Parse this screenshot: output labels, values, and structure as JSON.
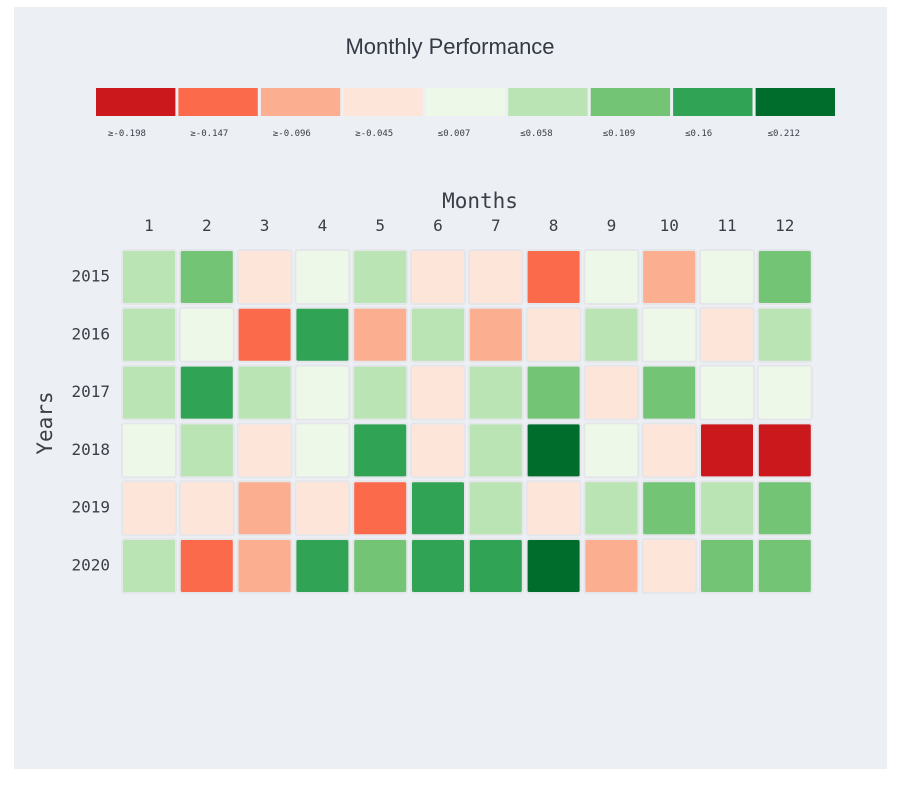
{
  "chart_data": {
    "type": "heatmap",
    "title": "Monthly Performance",
    "xlabel": "Months",
    "ylabel": "Years",
    "x": [
      "1",
      "2",
      "3",
      "4",
      "5",
      "6",
      "7",
      "8",
      "9",
      "10",
      "11",
      "12"
    ],
    "y": [
      "2015",
      "2016",
      "2017",
      "2018",
      "2019",
      "2020"
    ],
    "legend": {
      "placement": "top",
      "bins": [
        {
          "label": "≥-0.198",
          "color": "#cb181d"
        },
        {
          "label": "≥-0.147",
          "color": "#fb6a4a"
        },
        {
          "label": "≥-0.096",
          "color": "#fcae91"
        },
        {
          "label": "≥-0.045",
          "color": "#fee5d9"
        },
        {
          "label": "≤0.007",
          "color": "#edf8e9"
        },
        {
          "label": "≤0.058",
          "color": "#bae4b3"
        },
        {
          "label": "≤0.109",
          "color": "#74c476"
        },
        {
          "label": "≤0.16",
          "color": "#31a354"
        },
        {
          "label": "≤0.212",
          "color": "#006d2c"
        }
      ]
    },
    "bin_index_matrix": [
      [
        5,
        6,
        3,
        4,
        5,
        3,
        3,
        1,
        4,
        2,
        4,
        6
      ],
      [
        5,
        4,
        1,
        7,
        2,
        5,
        2,
        3,
        5,
        4,
        3,
        5
      ],
      [
        5,
        7,
        5,
        4,
        5,
        3,
        5,
        6,
        3,
        6,
        4,
        4
      ],
      [
        4,
        5,
        3,
        4,
        7,
        3,
        5,
        8,
        4,
        3,
        0,
        0
      ],
      [
        3,
        3,
        2,
        3,
        1,
        7,
        5,
        3,
        5,
        6,
        5,
        6
      ],
      [
        5,
        1,
        2,
        7,
        6,
        7,
        7,
        8,
        2,
        3,
        6,
        6
      ]
    ]
  }
}
